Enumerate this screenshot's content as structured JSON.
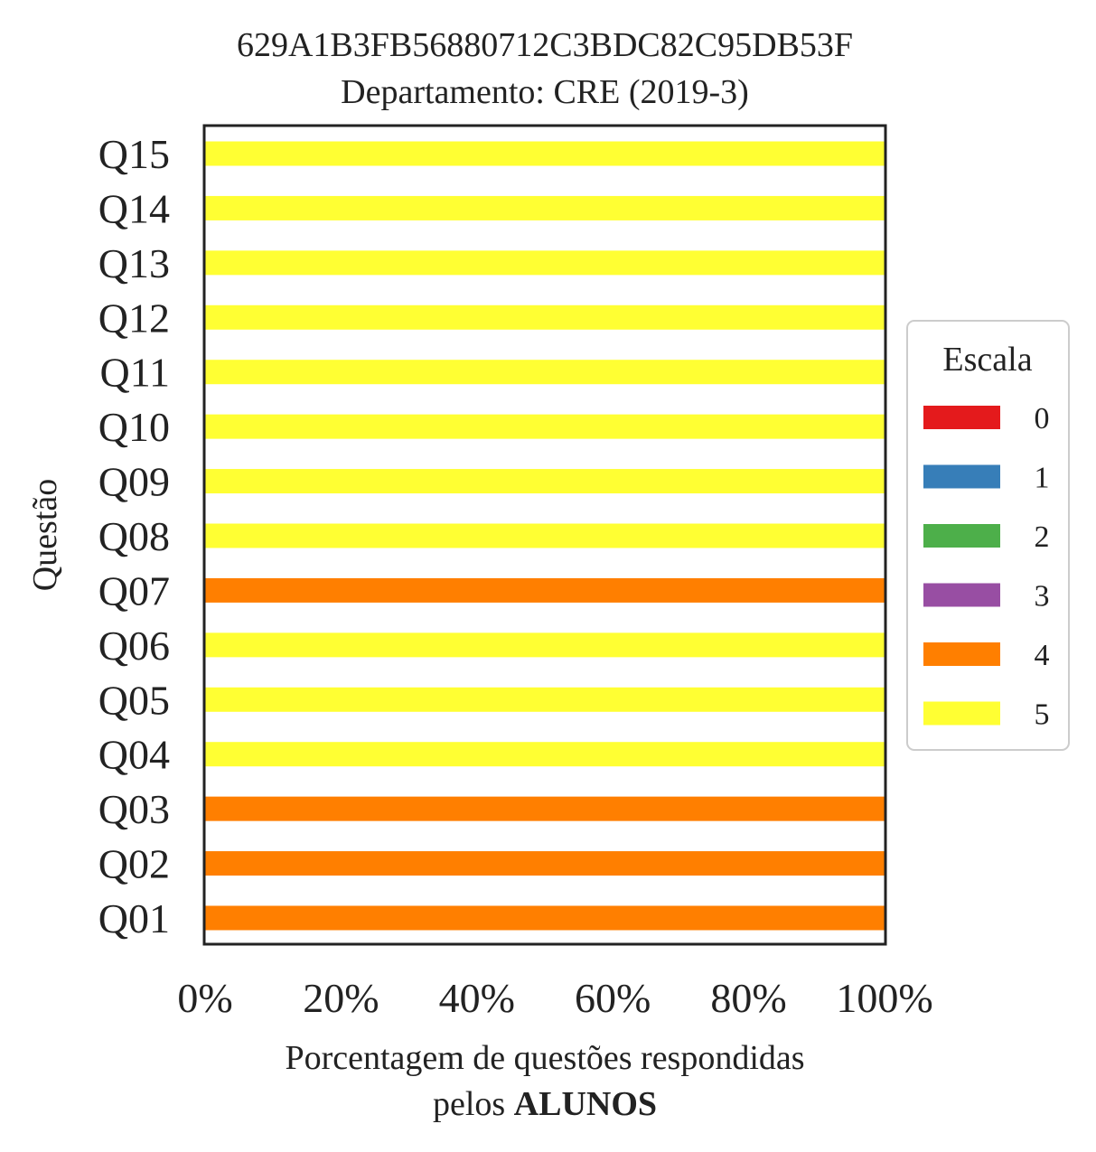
{
  "chart_data": {
    "type": "bar",
    "orientation": "horizontal",
    "stacked": true,
    "title": "629A1B3FB56880712C3BDC82C95DB53F",
    "subtitle": "Departamento: CRE (2019-3)",
    "xlabel_line1": "Porcentagem de questões respondidas",
    "xlabel_line2_prefix": "pelos ",
    "xlabel_line2_bold": "ALUNOS",
    "ylabel": "Questão",
    "xlim": [
      0,
      100
    ],
    "xticks": [
      0,
      20,
      40,
      60,
      80,
      100
    ],
    "xtick_labels": [
      "0%",
      "20%",
      "40%",
      "60%",
      "80%",
      "100%"
    ],
    "categories": [
      "Q01",
      "Q02",
      "Q03",
      "Q04",
      "Q05",
      "Q06",
      "Q07",
      "Q08",
      "Q09",
      "Q10",
      "Q11",
      "Q12",
      "Q13",
      "Q14",
      "Q15"
    ],
    "series": [
      {
        "name": "0",
        "color": "#e41a1c",
        "values": [
          0,
          0,
          0,
          0,
          0,
          0,
          0,
          0,
          0,
          0,
          0,
          0,
          0,
          0,
          0
        ]
      },
      {
        "name": "1",
        "color": "#377eb8",
        "values": [
          0,
          0,
          0,
          0,
          0,
          0,
          0,
          0,
          0,
          0,
          0,
          0,
          0,
          0,
          0
        ]
      },
      {
        "name": "2",
        "color": "#4daf4a",
        "values": [
          0,
          0,
          0,
          0,
          0,
          0,
          0,
          0,
          0,
          0,
          0,
          0,
          0,
          0,
          0
        ]
      },
      {
        "name": "3",
        "color": "#984ea3",
        "values": [
          0,
          0,
          0,
          0,
          0,
          0,
          0,
          0,
          0,
          0,
          0,
          0,
          0,
          0,
          0
        ]
      },
      {
        "name": "4",
        "color": "#ff7f00",
        "values": [
          100,
          100,
          100,
          0,
          0,
          0,
          100,
          0,
          0,
          0,
          0,
          0,
          0,
          0,
          0
        ]
      },
      {
        "name": "5",
        "color": "#ffff33",
        "values": [
          0,
          0,
          0,
          100,
          100,
          100,
          0,
          100,
          100,
          100,
          100,
          100,
          100,
          100,
          100
        ]
      }
    ],
    "legend": {
      "title": "Escala",
      "placement": "right"
    },
    "grid": false
  }
}
